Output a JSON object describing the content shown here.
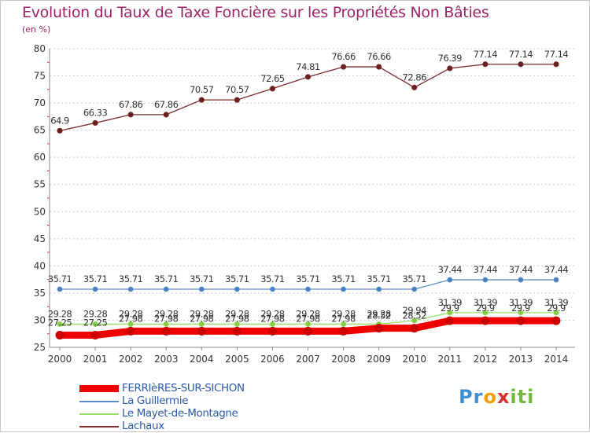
{
  "header": {
    "title": "Evolution du Taux de Taxe Foncière sur les Propriétés Non Bâties",
    "unit": "(en %)"
  },
  "logo": {
    "text": "Proxiti"
  },
  "colors": {
    "grid": "#cccccc",
    "axis": "#888888",
    "tick_text": "#333333",
    "label_text": "#333333"
  },
  "chart_data": {
    "type": "line",
    "title": "Evolution du Taux de Taxe Foncière sur les Propriétés Non Bâties",
    "ylabel": "(en %)",
    "xlabel": "",
    "x": [
      2000,
      2001,
      2002,
      2003,
      2004,
      2005,
      2006,
      2007,
      2008,
      2009,
      2010,
      2011,
      2012,
      2013,
      2014
    ],
    "ylim": [
      25,
      80
    ],
    "yticks": [
      25,
      30,
      35,
      40,
      45,
      50,
      55,
      60,
      65,
      70,
      75,
      80
    ],
    "grid": "horizontal",
    "legend_position": "bottom-left",
    "series": [
      {
        "name": "FERRIèRES-SUR-SICHON",
        "color": "#ee0000",
        "values": [
          27.25,
          27.25,
          27.98,
          27.98,
          27.98,
          27.98,
          27.98,
          27.98,
          27.98,
          28.52,
          28.52,
          29.9,
          29.9,
          29.9,
          29.9
        ],
        "labels": [
          "27.25",
          "27.25",
          "27.98",
          "27.98",
          "27.98",
          "27.98",
          "27.98",
          "27.98",
          "27.98",
          "28.52",
          "28.52",
          "29.9",
          "29.9",
          "29.9",
          "29.9"
        ]
      },
      {
        "name": "La Guillermie",
        "color": "#5b8fc8",
        "values": [
          35.71,
          35.71,
          35.71,
          35.71,
          35.71,
          35.71,
          35.71,
          35.71,
          35.71,
          35.71,
          35.71,
          37.44,
          37.44,
          37.44,
          37.44
        ],
        "labels": [
          "35.71",
          "35.71",
          "35.71",
          "35.71",
          "35.71",
          "35.71",
          "35.71",
          "35.71",
          "35.71",
          "35.71",
          "35.71",
          "37.44",
          "37.44",
          "37.44",
          "37.44"
        ]
      },
      {
        "name": "Le Mayet-de-Montagne",
        "color": "#99dd66",
        "values": [
          29.28,
          29.28,
          29.28,
          29.28,
          29.28,
          29.28,
          29.28,
          29.28,
          29.28,
          29.28,
          29.94,
          31.39,
          31.39,
          31.39,
          31.39
        ],
        "labels": [
          "29.28",
          "29.28",
          "29.28",
          "29.28",
          "29.28",
          "29.28",
          "29.28",
          "29.28",
          "29.28",
          "29.28",
          "29.94",
          "31.39",
          "31.39",
          "31.39",
          "31.39"
        ]
      },
      {
        "name": "Lachaux",
        "color": "#7a2d2d",
        "values": [
          64.9,
          66.33,
          67.86,
          67.86,
          70.57,
          70.57,
          72.65,
          74.81,
          76.66,
          76.66,
          72.86,
          76.39,
          77.14,
          77.14,
          77.14
        ],
        "labels": [
          "64.9",
          "66.33",
          "67.86",
          "67.86",
          "70.57",
          "70.57",
          "72.65",
          "74.81",
          "76.66",
          "76.66",
          "72.86",
          "76.39",
          "77.14",
          "77.14",
          "77.14"
        ]
      }
    ]
  }
}
